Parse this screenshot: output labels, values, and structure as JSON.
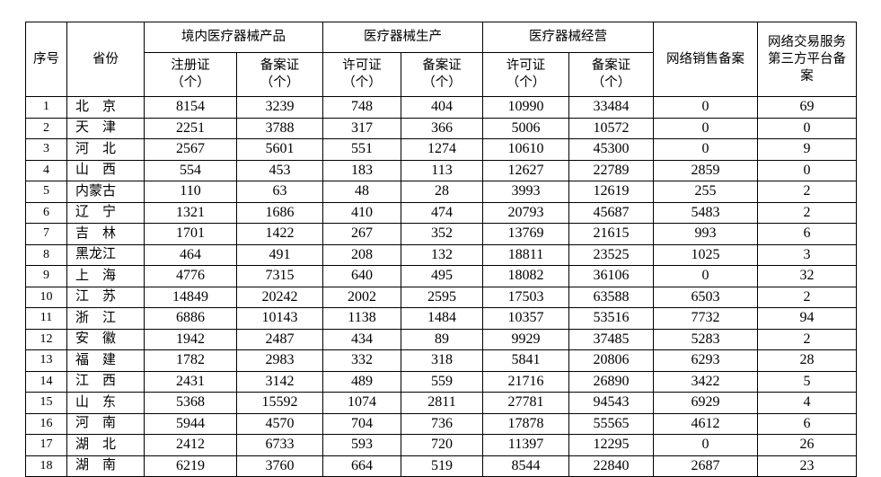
{
  "page": {
    "background_color": "#ffffff",
    "text_color": "#000000",
    "border_color": "#000000"
  },
  "table": {
    "headers": {
      "serial": "序号",
      "province": "省份",
      "domestic_products": "境内医疗器械产品",
      "production": "医疗器械生产",
      "operation": "医疗器械经营",
      "online_sales": "网络销售备案",
      "third_party": "网络交易服务第三方平台备案"
    },
    "subheaders": [
      {
        "label": "注册证",
        "unit": "（个）"
      },
      {
        "label": "备案证",
        "unit": "（个）"
      },
      {
        "label": "许可证",
        "unit": "（个）"
      },
      {
        "label": "备案证",
        "unit": "（个）"
      },
      {
        "label": "许可证",
        "unit": "（个）"
      },
      {
        "label": "备案证",
        "unit": "（个）"
      }
    ],
    "rows": [
      {
        "no": "1",
        "province": "北　京",
        "values": [
          "8154",
          "3239",
          "748",
          "404",
          "10990",
          "33484",
          "0",
          "69"
        ]
      },
      {
        "no": "2",
        "province": "天　津",
        "values": [
          "2251",
          "3788",
          "317",
          "366",
          "5006",
          "10572",
          "0",
          "0"
        ]
      },
      {
        "no": "3",
        "province": "河　北",
        "values": [
          "2567",
          "5601",
          "551",
          "1274",
          "10610",
          "45300",
          "0",
          "9"
        ]
      },
      {
        "no": "4",
        "province": "山　西",
        "values": [
          "554",
          "453",
          "183",
          "113",
          "12627",
          "22789",
          "2859",
          "0"
        ]
      },
      {
        "no": "5",
        "province": "内蒙古",
        "values": [
          "110",
          "63",
          "48",
          "28",
          "3993",
          "12619",
          "255",
          "2"
        ]
      },
      {
        "no": "6",
        "province": "辽　宁",
        "values": [
          "1321",
          "1686",
          "410",
          "474",
          "20793",
          "45687",
          "5483",
          "2"
        ]
      },
      {
        "no": "7",
        "province": "吉　林",
        "values": [
          "1701",
          "1422",
          "267",
          "352",
          "13769",
          "21615",
          "993",
          "6"
        ]
      },
      {
        "no": "8",
        "province": "黑龙江",
        "values": [
          "464",
          "491",
          "208",
          "132",
          "18811",
          "23525",
          "1025",
          "3"
        ]
      },
      {
        "no": "9",
        "province": "上　海",
        "values": [
          "4776",
          "7315",
          "640",
          "495",
          "18082",
          "36106",
          "0",
          "32"
        ]
      },
      {
        "no": "10",
        "province": "江　苏",
        "values": [
          "14849",
          "20242",
          "2002",
          "2595",
          "17503",
          "63588",
          "6503",
          "2"
        ]
      },
      {
        "no": "11",
        "province": "浙　江",
        "values": [
          "6886",
          "10143",
          "1138",
          "1484",
          "10357",
          "53516",
          "7732",
          "94"
        ]
      },
      {
        "no": "12",
        "province": "安　徽",
        "values": [
          "1942",
          "2487",
          "434",
          "89",
          "9929",
          "37485",
          "5283",
          "2"
        ]
      },
      {
        "no": "13",
        "province": "福　建",
        "values": [
          "1782",
          "2983",
          "332",
          "318",
          "5841",
          "20806",
          "6293",
          "28"
        ]
      },
      {
        "no": "14",
        "province": "江　西",
        "values": [
          "2431",
          "3142",
          "489",
          "559",
          "21716",
          "26890",
          "3422",
          "5"
        ]
      },
      {
        "no": "15",
        "province": "山　东",
        "values": [
          "5368",
          "15592",
          "1074",
          "2811",
          "27781",
          "94543",
          "6929",
          "4"
        ]
      },
      {
        "no": "16",
        "province": "河　南",
        "values": [
          "5944",
          "4570",
          "704",
          "736",
          "17878",
          "55565",
          "4612",
          "6"
        ]
      },
      {
        "no": "17",
        "province": "湖　北",
        "values": [
          "2412",
          "6733",
          "593",
          "720",
          "11397",
          "12295",
          "0",
          "26"
        ]
      },
      {
        "no": "18",
        "province": "湖　南",
        "values": [
          "6219",
          "3760",
          "664",
          "519",
          "8544",
          "22840",
          "2687",
          "23"
        ]
      }
    ]
  }
}
